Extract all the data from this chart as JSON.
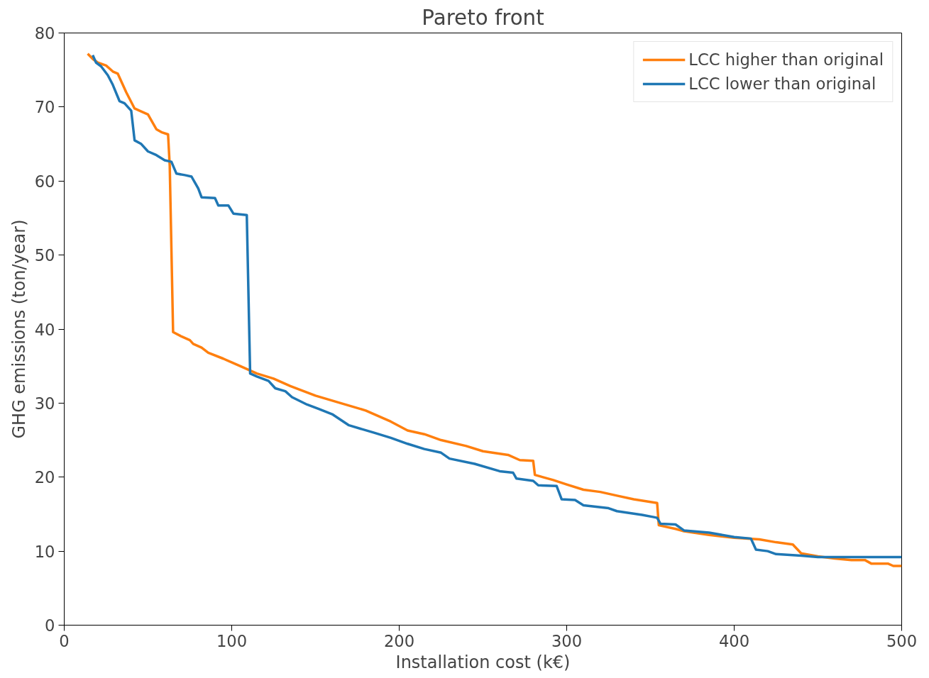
{
  "chart_data": {
    "type": "line",
    "title": "Pareto front",
    "xlabel": "Installation cost (k€)",
    "ylabel": "GHG emissions (ton/year)",
    "xlim": [
      0,
      500
    ],
    "ylim": [
      0,
      80
    ],
    "xticks": [
      0,
      100,
      200,
      300,
      400,
      500
    ],
    "yticks": [
      0,
      10,
      20,
      30,
      40,
      50,
      60,
      70,
      80
    ],
    "grid": false,
    "legend": "top right",
    "line_style": "solid",
    "marker": "none",
    "series": [
      {
        "name": "LCC higher than original",
        "color": "#ff7f0e",
        "x": [
          14,
          17,
          20,
          25,
          29,
          32,
          37,
          42,
          45,
          50,
          55,
          58,
          62,
          63,
          65,
          70,
          75,
          77,
          82,
          86,
          95,
          105,
          115,
          125,
          135,
          150,
          165,
          180,
          195,
          205,
          215,
          225,
          240,
          250,
          265,
          272,
          280,
          281,
          292,
          300,
          310,
          320,
          330,
          340,
          354,
          355,
          365,
          370,
          385,
          400,
          415,
          425,
          435,
          440,
          450,
          460,
          470,
          478,
          482,
          492,
          495,
          500
        ],
        "values": [
          77.2,
          76.5,
          76,
          75.6,
          74.8,
          74.5,
          72,
          69.8,
          69.5,
          69,
          67,
          66.6,
          66.3,
          62,
          39.6,
          39,
          38.5,
          38,
          37.5,
          36.8,
          36,
          35,
          34,
          33.3,
          32.3,
          31,
          30,
          29,
          27.5,
          26.3,
          25.8,
          25,
          24.2,
          23.5,
          23,
          22.3,
          22.2,
          20.3,
          19.6,
          19,
          18.3,
          18,
          17.5,
          17,
          16.5,
          13.5,
          13,
          12.7,
          12.2,
          11.8,
          11.6,
          11.2,
          10.9,
          9.7,
          9.3,
          9,
          8.8,
          8.8,
          8.3,
          8.3,
          8,
          8
        ]
      },
      {
        "name": "LCC lower than original",
        "color": "#1f77b4",
        "x": [
          17,
          19,
          22,
          26,
          29,
          33,
          36,
          40,
          42,
          46,
          50,
          55,
          60,
          64,
          67,
          72,
          76,
          80,
          82,
          90,
          92,
          98,
          101,
          109,
          111,
          115,
          122,
          126,
          132,
          136,
          145,
          152,
          160,
          170,
          185,
          195,
          205,
          215,
          225,
          230,
          245,
          260,
          268,
          270,
          280,
          283,
          294,
          297,
          305,
          310,
          325,
          330,
          345,
          352,
          354,
          356,
          365,
          370,
          385,
          400,
          410,
          413,
          420,
          425,
          440,
          450,
          460,
          500
        ],
        "values": [
          77,
          76,
          75.5,
          74.3,
          73,
          70.8,
          70.5,
          69.5,
          65.5,
          65,
          64,
          63.5,
          62.8,
          62.6,
          61,
          60.8,
          60.6,
          59,
          57.8,
          57.7,
          56.7,
          56.7,
          55.6,
          55.4,
          34,
          33.6,
          33,
          32,
          31.6,
          30.8,
          29.8,
          29.2,
          28.5,
          27,
          26,
          25.3,
          24.5,
          23.8,
          23.3,
          22.5,
          21.8,
          20.8,
          20.6,
          19.8,
          19.5,
          18.9,
          18.8,
          17,
          16.9,
          16.2,
          15.8,
          15.4,
          14.9,
          14.6,
          14.5,
          13.7,
          13.6,
          12.8,
          12.5,
          11.9,
          11.7,
          10.2,
          10,
          9.6,
          9.4,
          9.2,
          9.2,
          9.2
        ]
      }
    ]
  }
}
